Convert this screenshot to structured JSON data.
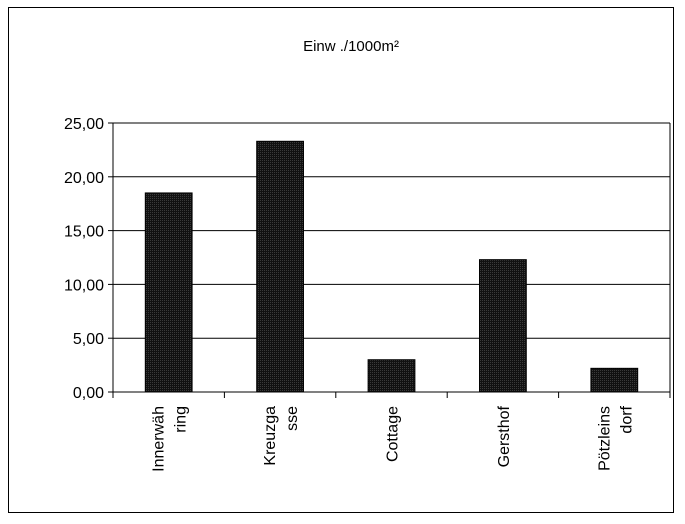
{
  "chart_data": {
    "type": "bar",
    "title": "Einw ./1000m²",
    "categories": [
      [
        "Innerwäh",
        "ring"
      ],
      [
        "Kreuzga",
        "sse"
      ],
      [
        "Cottage"
      ],
      [
        "Gersthof"
      ],
      [
        "Pötzleins",
        "dorf"
      ]
    ],
    "values": [
      18.5,
      23.3,
      3.0,
      12.3,
      2.2
    ],
    "ylim": [
      0,
      25
    ],
    "yticks": [
      "0,00",
      "5,00",
      "10,00",
      "15,00",
      "20,00",
      "25,00"
    ],
    "grid": true,
    "legend": "none",
    "bar_color": "#222222"
  }
}
